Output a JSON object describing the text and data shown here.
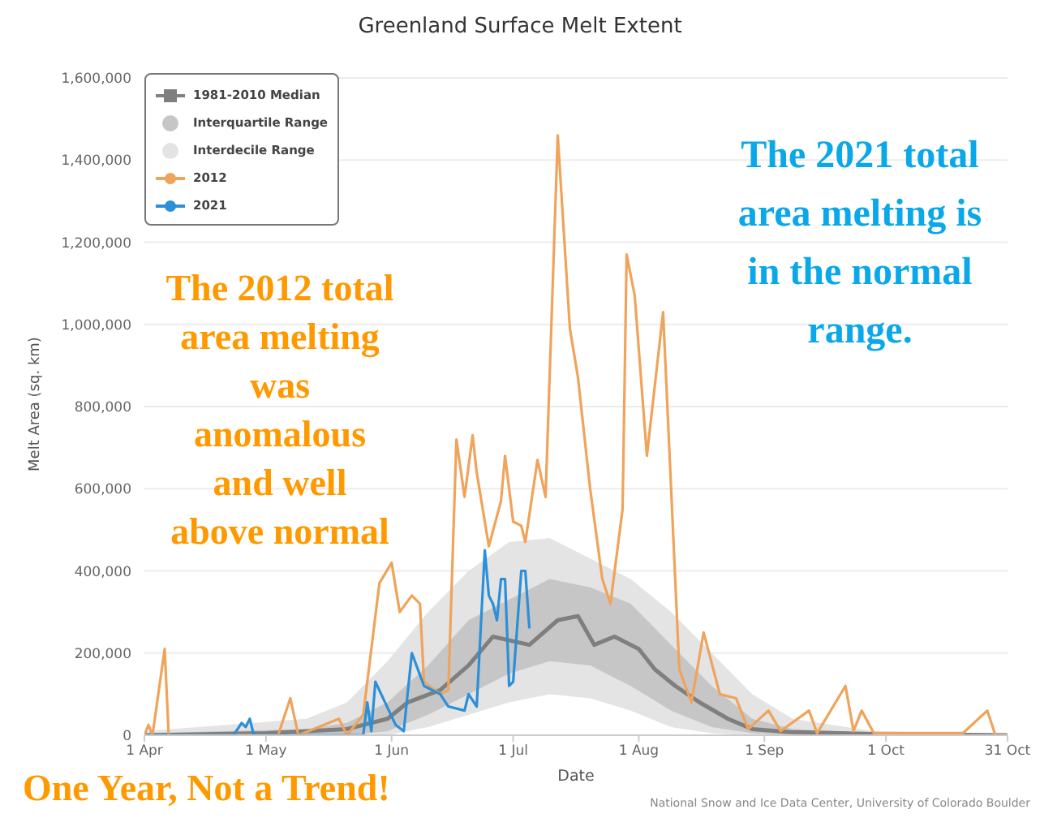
{
  "chart_data": {
    "type": "line",
    "title": "Greenland Surface Melt Extent",
    "xlabel": "Date",
    "ylabel": "Melt Area (sq. km)",
    "xlim": [
      "--04-01",
      "--10-31"
    ],
    "xticks": [
      {
        "value": "--04-01",
        "label": "1 Apr"
      },
      {
        "value": "--05-01",
        "label": "1 May"
      },
      {
        "value": "--06-01",
        "label": "1 Jun"
      },
      {
        "value": "--07-01",
        "label": "1 Jul"
      },
      {
        "value": "--08-01",
        "label": "1 Aug"
      },
      {
        "value": "--09-01",
        "label": "1 Sep"
      },
      {
        "value": "--10-01",
        "label": "1 Oct"
      },
      {
        "value": "--10-31",
        "label": "31 Oct"
      }
    ],
    "ylim": [
      0,
      1600000
    ],
    "yticks": [
      0,
      {
        "value": 200000,
        "label": "200,000"
      },
      {
        "value": 400000,
        "label": "400,000"
      },
      {
        "value": 600000,
        "label": "600,000"
      },
      {
        "value": 800000,
        "label": "800,000"
      },
      {
        "value": 1000000,
        "label": "1,000,000"
      },
      {
        "value": 1200000,
        "label": "1,200,000"
      },
      {
        "value": 1400000,
        "label": "1,400,000"
      },
      {
        "value": 1600000,
        "label": "1,600,000"
      }
    ],
    "grid": "y",
    "legend": "top left",
    "series": [
      {
        "name": "1981-2010 Median",
        "color": "#7f7f7f",
        "x": [
          "--04-01",
          "--05-01",
          "--05-21",
          "--05-31",
          "--06-05",
          "--06-13",
          "--06-20",
          "--06-26",
          "--07-05",
          "--07-12",
          "--07-17",
          "--07-21",
          "--07-26",
          "--08-01",
          "--08-05",
          "--08-10",
          "--08-16",
          "--08-23",
          "--08-29",
          "--09-07",
          "--09-28",
          "--10-31"
        ],
        "values": [
          0,
          5000,
          15000,
          40000,
          80000,
          110000,
          170000,
          240000,
          220000,
          280000,
          290000,
          220000,
          240000,
          210000,
          160000,
          120000,
          80000,
          40000,
          15000,
          8000,
          3000,
          0
        ]
      },
      {
        "name": "Interquartile Range",
        "type": "area",
        "color": "#c6c6c6",
        "x": [
          "--04-01",
          "--05-11",
          "--05-21",
          "--05-31",
          "--06-10",
          "--06-20",
          "--06-30",
          "--07-10",
          "--07-20",
          "--07-30",
          "--08-09",
          "--08-19",
          "--08-29",
          "--09-08",
          "--09-28",
          "--10-31"
        ],
        "values": [
          null,
          null,
          null,
          null,
          null,
          null,
          null,
          null,
          null,
          null,
          null,
          null,
          null,
          null,
          null,
          null
        ],
        "lower": [
          0,
          0,
          0,
          10000,
          50000,
          100000,
          150000,
          180000,
          170000,
          120000,
          60000,
          20000,
          5000,
          0,
          0,
          0
        ],
        "upper": [
          5000,
          15000,
          30000,
          80000,
          170000,
          280000,
          330000,
          380000,
          360000,
          320000,
          220000,
          120000,
          40000,
          15000,
          5000,
          0
        ]
      },
      {
        "name": "Interdecile Range",
        "type": "area",
        "color": "#e4e4e4",
        "x": [
          "--04-01",
          "--05-11",
          "--05-21",
          "--05-31",
          "--06-10",
          "--06-20",
          "--06-30",
          "--07-10",
          "--07-20",
          "--07-30",
          "--08-09",
          "--08-19",
          "--08-29",
          "--09-08",
          "--09-28",
          "--10-31"
        ],
        "values": [
          null,
          null,
          null,
          null,
          null,
          null,
          null,
          null,
          null,
          null,
          null,
          null,
          null,
          null,
          null,
          null
        ],
        "lower": [
          0,
          0,
          0,
          0,
          20000,
          50000,
          80000,
          100000,
          90000,
          60000,
          20000,
          5000,
          0,
          0,
          0,
          0
        ],
        "upper": [
          10000,
          40000,
          80000,
          180000,
          300000,
          400000,
          470000,
          480000,
          430000,
          380000,
          300000,
          200000,
          100000,
          40000,
          10000,
          0
        ]
      },
      {
        "name": "2012",
        "color": "#f0a35a",
        "x": [
          "--04-01",
          "--04-02",
          "--04-03",
          "--04-06",
          "--04-07",
          "--05-04",
          "--05-07",
          "--05-09",
          "--05-19",
          "--05-21",
          "--05-25",
          "--05-29",
          "--06-01",
          "--06-03",
          "--06-06",
          "--06-08",
          "--06-09",
          "--06-13",
          "--06-15",
          "--06-17",
          "--06-19",
          "--06-21",
          "--06-22",
          "--06-25",
          "--06-28",
          "--06-29",
          "--07-01",
          "--07-03",
          "--07-04",
          "--07-07",
          "--07-09",
          "--07-12",
          "--07-15",
          "--07-17",
          "--07-20",
          "--07-23",
          "--07-25",
          "--07-28",
          "--07-29",
          "--07-31",
          "--08-03",
          "--08-07",
          "--08-11",
          "--08-14",
          "--08-17",
          "--08-21",
          "--08-25",
          "--08-28",
          "--09-02",
          "--09-05",
          "--09-12",
          "--09-14",
          "--09-21",
          "--09-23",
          "--09-25",
          "--09-28",
          "--10-20",
          "--10-26",
          "--10-28",
          "--10-31"
        ],
        "values": [
          0,
          25000,
          0,
          210000,
          0,
          0,
          90000,
          0,
          40000,
          0,
          50000,
          370000,
          420000,
          300000,
          340000,
          320000,
          130000,
          100000,
          110000,
          720000,
          580000,
          730000,
          640000,
          460000,
          570000,
          680000,
          520000,
          510000,
          470000,
          670000,
          580000,
          1460000,
          990000,
          870000,
          600000,
          380000,
          320000,
          550000,
          1170000,
          1070000,
          680000,
          1030000,
          160000,
          80000,
          250000,
          100000,
          90000,
          15000,
          60000,
          10000,
          60000,
          5000,
          120000,
          10000,
          60000,
          5000,
          5000,
          60000,
          0,
          0
        ]
      },
      {
        "name": "2021",
        "color": "#2b8fd9",
        "x": [
          "--04-01",
          "--04-23",
          "--04-25",
          "--04-26",
          "--04-27",
          "--04-28",
          "--05-25",
          "--05-26",
          "--05-27",
          "--05-28",
          "--06-02",
          "--06-04",
          "--06-06",
          "--06-09",
          "--06-13",
          "--06-15",
          "--06-19",
          "--06-20",
          "--06-22",
          "--06-24",
          "--06-25",
          "--06-26",
          "--06-27",
          "--06-28",
          "--06-29",
          "--06-30",
          "--07-01",
          "--07-03",
          "--07-04",
          "--07-05"
        ],
        "values": [
          0,
          0,
          30000,
          20000,
          40000,
          0,
          0,
          80000,
          10000,
          130000,
          25000,
          10000,
          200000,
          120000,
          100000,
          70000,
          60000,
          100000,
          70000,
          450000,
          340000,
          320000,
          280000,
          380000,
          380000,
          120000,
          130000,
          400000,
          400000,
          260000
        ]
      }
    ],
    "annotations": [
      "The 2012 total area melting was anomalous and well above normal",
      "The 2021 total area melting is in the normal range.",
      "One Year, Not a Trend!",
      "National Snow and Ice Data Center, University of Colorado Boulder"
    ]
  }
}
